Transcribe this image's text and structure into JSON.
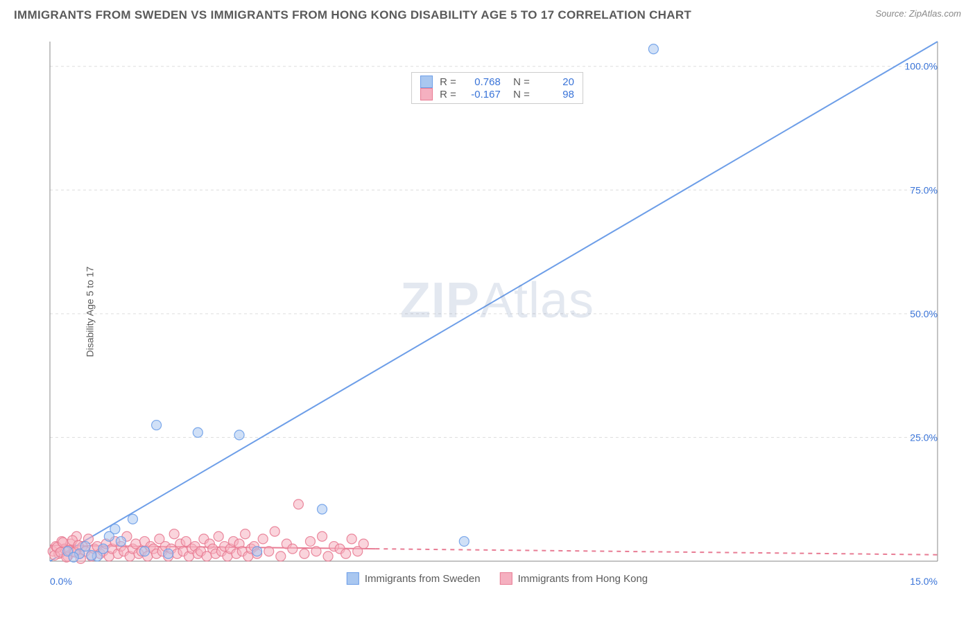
{
  "header": {
    "title": "IMMIGRANTS FROM SWEDEN VS IMMIGRANTS FROM HONG KONG DISABILITY AGE 5 TO 17 CORRELATION CHART",
    "source": "Source: ZipAtlas.com"
  },
  "ylabel": "Disability Age 5 to 17",
  "watermark": "ZIPAtlas",
  "chart": {
    "type": "scatter",
    "background_color": "#ffffff",
    "grid_color": "#dddddd",
    "axis_color": "#888888",
    "xlim": [
      0,
      15
    ],
    "ylim": [
      0,
      105
    ],
    "x_ticks": [
      {
        "v": 0,
        "l": "0.0%"
      },
      {
        "v": 15,
        "l": "15.0%"
      }
    ],
    "y_ticks": [
      {
        "v": 25,
        "l": "25.0%"
      },
      {
        "v": 50,
        "l": "50.0%"
      },
      {
        "v": 75,
        "l": "75.0%"
      },
      {
        "v": 100,
        "l": "100.0%"
      }
    ],
    "tick_color": "#3a74d8",
    "tick_fontsize": 14,
    "marker_radius": 7,
    "marker_opacity": 0.55,
    "marker_stroke_opacity": 0.9,
    "series": [
      {
        "name": "Immigrants from Sweden",
        "color": "#6d9ee8",
        "fill": "#a9c7f0",
        "r_value": "0.768",
        "n_value": "20",
        "trend": {
          "x1": 0,
          "y1": 0,
          "x2": 15,
          "y2": 105,
          "solid_to_x": 15,
          "width": 2
        },
        "points": [
          {
            "x": 0.3,
            "y": 2.0
          },
          {
            "x": 0.5,
            "y": 1.5
          },
          {
            "x": 0.6,
            "y": 3.0
          },
          {
            "x": 0.8,
            "y": 1.0
          },
          {
            "x": 1.0,
            "y": 5.0
          },
          {
            "x": 1.1,
            "y": 6.5
          },
          {
            "x": 1.4,
            "y": 8.5
          },
          {
            "x": 1.6,
            "y": 2.0
          },
          {
            "x": 1.8,
            "y": 27.5
          },
          {
            "x": 2.0,
            "y": 1.5
          },
          {
            "x": 2.5,
            "y": 26.0
          },
          {
            "x": 3.2,
            "y": 25.5
          },
          {
            "x": 3.5,
            "y": 2.0
          },
          {
            "x": 4.6,
            "y": 10.5
          },
          {
            "x": 7.0,
            "y": 4.0
          },
          {
            "x": 10.2,
            "y": 103.5
          },
          {
            "x": 0.4,
            "y": 0.8
          },
          {
            "x": 0.7,
            "y": 1.2
          },
          {
            "x": 0.9,
            "y": 2.5
          },
          {
            "x": 1.2,
            "y": 4.0
          }
        ]
      },
      {
        "name": "Immigrants from Hong Kong",
        "color": "#e87c94",
        "fill": "#f5b0c0",
        "r_value": "-0.167",
        "n_value": "98",
        "trend": {
          "x1": 0,
          "y1": 3.2,
          "x2": 15,
          "y2": 1.3,
          "solid_to_x": 5.5,
          "width": 2
        },
        "points": [
          {
            "x": 0.05,
            "y": 2.0
          },
          {
            "x": 0.1,
            "y": 3.0
          },
          {
            "x": 0.15,
            "y": 1.5
          },
          {
            "x": 0.2,
            "y": 4.0
          },
          {
            "x": 0.25,
            "y": 2.5
          },
          {
            "x": 0.3,
            "y": 1.0
          },
          {
            "x": 0.35,
            "y": 3.5
          },
          {
            "x": 0.4,
            "y": 2.0
          },
          {
            "x": 0.45,
            "y": 5.0
          },
          {
            "x": 0.5,
            "y": 1.5
          },
          {
            "x": 0.55,
            "y": 3.0
          },
          {
            "x": 0.6,
            "y": 2.0
          },
          {
            "x": 0.65,
            "y": 4.5
          },
          {
            "x": 0.7,
            "y": 1.0
          },
          {
            "x": 0.75,
            "y": 2.5
          },
          {
            "x": 0.8,
            "y": 3.0
          },
          {
            "x": 0.85,
            "y": 1.5
          },
          {
            "x": 0.9,
            "y": 2.0
          },
          {
            "x": 0.95,
            "y": 3.5
          },
          {
            "x": 1.0,
            "y": 1.0
          },
          {
            "x": 1.05,
            "y": 2.5
          },
          {
            "x": 1.1,
            "y": 4.0
          },
          {
            "x": 1.15,
            "y": 1.5
          },
          {
            "x": 1.2,
            "y": 3.0
          },
          {
            "x": 1.25,
            "y": 2.0
          },
          {
            "x": 1.3,
            "y": 5.0
          },
          {
            "x": 1.35,
            "y": 1.0
          },
          {
            "x": 1.4,
            "y": 2.5
          },
          {
            "x": 1.45,
            "y": 3.5
          },
          {
            "x": 1.5,
            "y": 1.5
          },
          {
            "x": 1.55,
            "y": 2.0
          },
          {
            "x": 1.6,
            "y": 4.0
          },
          {
            "x": 1.65,
            "y": 1.0
          },
          {
            "x": 1.7,
            "y": 3.0
          },
          {
            "x": 1.75,
            "y": 2.5
          },
          {
            "x": 1.8,
            "y": 1.5
          },
          {
            "x": 1.85,
            "y": 4.5
          },
          {
            "x": 1.9,
            "y": 2.0
          },
          {
            "x": 1.95,
            "y": 3.0
          },
          {
            "x": 2.0,
            "y": 1.0
          },
          {
            "x": 2.05,
            "y": 2.5
          },
          {
            "x": 2.1,
            "y": 5.5
          },
          {
            "x": 2.15,
            "y": 1.5
          },
          {
            "x": 2.2,
            "y": 3.5
          },
          {
            "x": 2.25,
            "y": 2.0
          },
          {
            "x": 2.3,
            "y": 4.0
          },
          {
            "x": 2.35,
            "y": 1.0
          },
          {
            "x": 2.4,
            "y": 2.5
          },
          {
            "x": 2.45,
            "y": 3.0
          },
          {
            "x": 2.5,
            "y": 1.5
          },
          {
            "x": 2.55,
            "y": 2.0
          },
          {
            "x": 2.6,
            "y": 4.5
          },
          {
            "x": 2.65,
            "y": 1.0
          },
          {
            "x": 2.7,
            "y": 3.5
          },
          {
            "x": 2.75,
            "y": 2.5
          },
          {
            "x": 2.8,
            "y": 1.5
          },
          {
            "x": 2.85,
            "y": 5.0
          },
          {
            "x": 2.9,
            "y": 2.0
          },
          {
            "x": 2.95,
            "y": 3.0
          },
          {
            "x": 3.0,
            "y": 1.0
          },
          {
            "x": 3.05,
            "y": 2.5
          },
          {
            "x": 3.1,
            "y": 4.0
          },
          {
            "x": 3.15,
            "y": 1.5
          },
          {
            "x": 3.2,
            "y": 3.5
          },
          {
            "x": 3.25,
            "y": 2.0
          },
          {
            "x": 3.3,
            "y": 5.5
          },
          {
            "x": 3.35,
            "y": 1.0
          },
          {
            "x": 3.4,
            "y": 2.5
          },
          {
            "x": 3.45,
            "y": 3.0
          },
          {
            "x": 3.5,
            "y": 1.5
          },
          {
            "x": 3.6,
            "y": 4.5
          },
          {
            "x": 3.7,
            "y": 2.0
          },
          {
            "x": 3.8,
            "y": 6.0
          },
          {
            "x": 3.9,
            "y": 1.0
          },
          {
            "x": 4.0,
            "y": 3.5
          },
          {
            "x": 4.1,
            "y": 2.5
          },
          {
            "x": 4.2,
            "y": 11.5
          },
          {
            "x": 4.3,
            "y": 1.5
          },
          {
            "x": 4.4,
            "y": 4.0
          },
          {
            "x": 4.5,
            "y": 2.0
          },
          {
            "x": 4.6,
            "y": 5.0
          },
          {
            "x": 4.7,
            "y": 1.0
          },
          {
            "x": 4.8,
            "y": 3.0
          },
          {
            "x": 4.9,
            "y": 2.5
          },
          {
            "x": 5.0,
            "y": 1.5
          },
          {
            "x": 5.1,
            "y": 4.5
          },
          {
            "x": 5.2,
            "y": 2.0
          },
          {
            "x": 5.3,
            "y": 3.5
          },
          {
            "x": 0.08,
            "y": 1.2
          },
          {
            "x": 0.12,
            "y": 2.8
          },
          {
            "x": 0.18,
            "y": 1.8
          },
          {
            "x": 0.22,
            "y": 3.8
          },
          {
            "x": 0.28,
            "y": 0.8
          },
          {
            "x": 0.32,
            "y": 2.2
          },
          {
            "x": 0.38,
            "y": 4.2
          },
          {
            "x": 0.42,
            "y": 1.8
          },
          {
            "x": 0.48,
            "y": 3.2
          },
          {
            "x": 0.52,
            "y": 0.5
          }
        ]
      }
    ]
  },
  "bottom_legend": [
    {
      "label": "Immigrants from Sweden",
      "fill": "#a9c7f0",
      "border": "#6d9ee8"
    },
    {
      "label": "Immigrants from Hong Kong",
      "fill": "#f5b0c0",
      "border": "#e87c94"
    }
  ]
}
